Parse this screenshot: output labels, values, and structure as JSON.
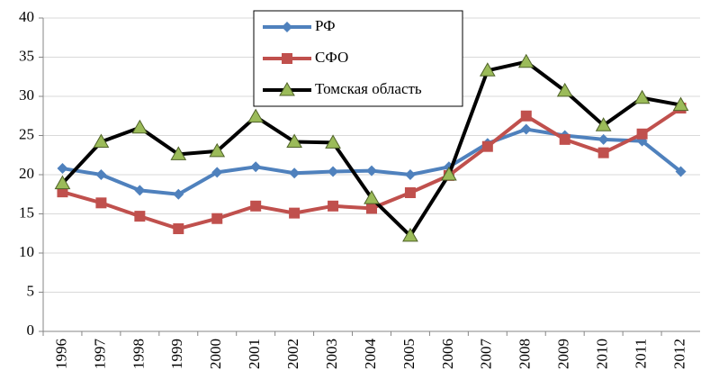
{
  "chart_data": {
    "type": "line",
    "categories": [
      "1996",
      "1997",
      "1998",
      "1999",
      "2000",
      "2001",
      "2002",
      "2003",
      "2004",
      "2005",
      "2006",
      "2007",
      "2008",
      "2009",
      "2010",
      "2011",
      "2012"
    ],
    "series": [
      {
        "name": "РФ",
        "color": "#4f81bd",
        "marker": "diamond",
        "values": [
          20.8,
          20.0,
          18.0,
          17.5,
          20.3,
          21.0,
          20.2,
          20.4,
          20.5,
          20.0,
          21.0,
          24.0,
          25.8,
          25.0,
          24.5,
          24.3,
          20.4
        ]
      },
      {
        "name": "СФО",
        "color": "#c0504d",
        "marker": "square",
        "values": [
          17.8,
          16.4,
          14.7,
          13.1,
          14.4,
          16.0,
          15.1,
          16.0,
          15.7,
          17.7,
          19.9,
          23.6,
          27.5,
          24.5,
          22.8,
          25.2,
          28.5
        ]
      },
      {
        "name": "Томская область",
        "color": "#000000",
        "marker": "triangle",
        "marker_fill": "#9bbb59",
        "values": [
          18.9,
          24.2,
          26.0,
          22.6,
          23.0,
          27.4,
          24.2,
          24.1,
          17.0,
          12.2,
          20.0,
          33.3,
          34.4,
          30.7,
          26.3,
          29.8,
          28.9
        ]
      }
    ],
    "ylim": [
      0,
      40
    ],
    "yticks": [
      0,
      5,
      10,
      15,
      20,
      25,
      30,
      35,
      40
    ],
    "grid": true,
    "legend": "top"
  }
}
